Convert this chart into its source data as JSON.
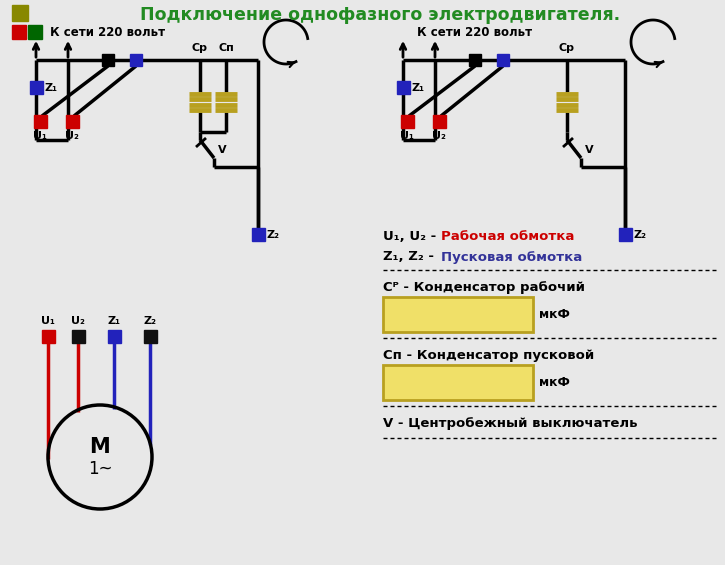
{
  "title": "Подключение однофазного электродвигателя.",
  "title_color": "#228B22",
  "title_fontsize": 12.5,
  "bg_color": "#e8e8e8",
  "text_network": "К сети 220 вольт",
  "label_u1u2_black": "U₁, U₂ - ",
  "label_u1u2_red": "Рабочая обмотка",
  "label_z1z2_black": "Z₁, Z₂ - ",
  "label_z1z2_blue": "Пусковая обмотка",
  "label_cp": "Cᴾ - Конденсатор рабочий",
  "label_cn": "Cп - Конденсатор пусковой",
  "label_v": "V - Центробежный выключатель",
  "label_mkf": "мкФ",
  "red_color": "#cc0000",
  "blue_color": "#2222bb",
  "dark_blue": "#333399",
  "gold_color": "#b8a020",
  "box_fill": "#f0e068",
  "box_edge": "#b8a020",
  "logo_olive": "#888800",
  "logo_red": "#cc0000",
  "logo_green": "#006600",
  "black": "#000000",
  "white": "#ffffff"
}
